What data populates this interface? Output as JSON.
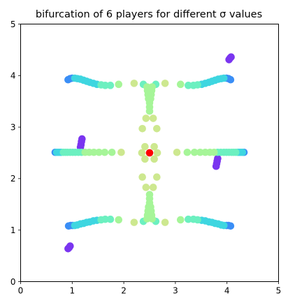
{
  "chart_data": {
    "type": "scatter",
    "title": "bifurcation of 6 players for different σ values",
    "xlabel": "",
    "ylabel": "",
    "xlim": [
      0,
      5
    ],
    "ylim": [
      0,
      5
    ],
    "xticks": [
      "0",
      "1",
      "2",
      "3",
      "4",
      "5"
    ],
    "yticks": [
      "0",
      "1",
      "2",
      "3",
      "4",
      "5"
    ],
    "grid": false,
    "legend": "none",
    "colormap": "rainbow",
    "center_color": "#ff0000",
    "palette": {
      "purple": "#7a35f0",
      "blue": "#3a8ef6",
      "cyan": "#3ed6e0",
      "teal": "#6cf0c0",
      "green": "#a6f598",
      "lime": "#cde88f"
    },
    "points": [
      {
        "x": 2.5,
        "y": 2.5,
        "c": "center"
      },
      {
        "x": 0.92,
        "y": 0.64,
        "c": "purple"
      },
      {
        "x": 0.94,
        "y": 0.66,
        "c": "purple"
      },
      {
        "x": 0.96,
        "y": 0.69,
        "c": "purple"
      },
      {
        "x": 1.16,
        "y": 2.61,
        "c": "purple"
      },
      {
        "x": 1.17,
        "y": 2.66,
        "c": "purple"
      },
      {
        "x": 1.18,
        "y": 2.72,
        "c": "purple"
      },
      {
        "x": 1.19,
        "y": 2.77,
        "c": "purple"
      },
      {
        "x": 3.79,
        "y": 2.24,
        "c": "purple"
      },
      {
        "x": 3.8,
        "y": 2.29,
        "c": "purple"
      },
      {
        "x": 3.81,
        "y": 2.34,
        "c": "purple"
      },
      {
        "x": 3.82,
        "y": 2.39,
        "c": "purple"
      },
      {
        "x": 4.04,
        "y": 4.31,
        "c": "purple"
      },
      {
        "x": 4.06,
        "y": 4.34,
        "c": "purple"
      },
      {
        "x": 4.08,
        "y": 4.36,
        "c": "purple"
      },
      {
        "x": 0.92,
        "y": 3.92,
        "c": "blue"
      },
      {
        "x": 0.96,
        "y": 3.94,
        "c": "blue"
      },
      {
        "x": 1.0,
        "y": 3.95,
        "c": "blue"
      },
      {
        "x": 0.93,
        "y": 1.08,
        "c": "blue"
      },
      {
        "x": 0.97,
        "y": 1.09,
        "c": "blue"
      },
      {
        "x": 1.01,
        "y": 1.09,
        "c": "blue"
      },
      {
        "x": 4.07,
        "y": 3.92,
        "c": "blue"
      },
      {
        "x": 4.03,
        "y": 3.94,
        "c": "blue"
      },
      {
        "x": 3.99,
        "y": 3.95,
        "c": "blue"
      },
      {
        "x": 4.07,
        "y": 1.08,
        "c": "blue"
      },
      {
        "x": 4.03,
        "y": 1.09,
        "c": "blue"
      },
      {
        "x": 3.99,
        "y": 1.09,
        "c": "blue"
      },
      {
        "x": 0.67,
        "y": 2.51,
        "c": "blue"
      },
      {
        "x": 4.33,
        "y": 2.51,
        "c": "blue"
      },
      {
        "x": 1.05,
        "y": 3.95,
        "c": "cyan"
      },
      {
        "x": 1.1,
        "y": 3.94,
        "c": "cyan"
      },
      {
        "x": 1.16,
        "y": 3.93,
        "c": "cyan"
      },
      {
        "x": 1.22,
        "y": 3.91,
        "c": "cyan"
      },
      {
        "x": 1.28,
        "y": 3.89,
        "c": "cyan"
      },
      {
        "x": 1.34,
        "y": 3.87,
        "c": "cyan"
      },
      {
        "x": 1.41,
        "y": 3.85,
        "c": "cyan"
      },
      {
        "x": 1.48,
        "y": 3.83,
        "c": "cyan"
      },
      {
        "x": 1.05,
        "y": 1.09,
        "c": "cyan"
      },
      {
        "x": 1.1,
        "y": 1.1,
        "c": "cyan"
      },
      {
        "x": 1.16,
        "y": 1.12,
        "c": "cyan"
      },
      {
        "x": 1.22,
        "y": 1.13,
        "c": "cyan"
      },
      {
        "x": 1.28,
        "y": 1.15,
        "c": "cyan"
      },
      {
        "x": 1.34,
        "y": 1.16,
        "c": "cyan"
      },
      {
        "x": 1.41,
        "y": 1.18,
        "c": "cyan"
      },
      {
        "x": 1.48,
        "y": 1.19,
        "c": "cyan"
      },
      {
        "x": 3.94,
        "y": 3.95,
        "c": "cyan"
      },
      {
        "x": 3.89,
        "y": 3.94,
        "c": "cyan"
      },
      {
        "x": 3.83,
        "y": 3.93,
        "c": "cyan"
      },
      {
        "x": 3.77,
        "y": 3.91,
        "c": "cyan"
      },
      {
        "x": 3.71,
        "y": 3.89,
        "c": "cyan"
      },
      {
        "x": 3.65,
        "y": 3.87,
        "c": "cyan"
      },
      {
        "x": 3.58,
        "y": 3.85,
        "c": "cyan"
      },
      {
        "x": 3.51,
        "y": 3.83,
        "c": "cyan"
      },
      {
        "x": 3.94,
        "y": 1.09,
        "c": "cyan"
      },
      {
        "x": 3.89,
        "y": 1.1,
        "c": "cyan"
      },
      {
        "x": 3.83,
        "y": 1.12,
        "c": "cyan"
      },
      {
        "x": 3.77,
        "y": 1.13,
        "c": "cyan"
      },
      {
        "x": 3.71,
        "y": 1.15,
        "c": "cyan"
      },
      {
        "x": 3.65,
        "y": 1.16,
        "c": "cyan"
      },
      {
        "x": 3.58,
        "y": 1.18,
        "c": "cyan"
      },
      {
        "x": 3.51,
        "y": 1.19,
        "c": "cyan"
      },
      {
        "x": 0.7,
        "y": 2.51,
        "c": "cyan"
      },
      {
        "x": 0.73,
        "y": 2.51,
        "c": "cyan"
      },
      {
        "x": 0.76,
        "y": 2.51,
        "c": "cyan"
      },
      {
        "x": 0.79,
        "y": 2.51,
        "c": "cyan"
      },
      {
        "x": 4.3,
        "y": 2.51,
        "c": "cyan"
      },
      {
        "x": 4.27,
        "y": 2.51,
        "c": "cyan"
      },
      {
        "x": 4.24,
        "y": 2.51,
        "c": "cyan"
      },
      {
        "x": 4.21,
        "y": 2.51,
        "c": "cyan"
      },
      {
        "x": 1.56,
        "y": 3.82,
        "c": "teal"
      },
      {
        "x": 1.64,
        "y": 3.81,
        "c": "teal"
      },
      {
        "x": 1.74,
        "y": 3.81,
        "c": "teal"
      },
      {
        "x": 1.56,
        "y": 1.2,
        "c": "teal"
      },
      {
        "x": 1.64,
        "y": 1.21,
        "c": "teal"
      },
      {
        "x": 1.74,
        "y": 1.21,
        "c": "teal"
      },
      {
        "x": 3.43,
        "y": 3.82,
        "c": "teal"
      },
      {
        "x": 3.35,
        "y": 3.81,
        "c": "teal"
      },
      {
        "x": 3.25,
        "y": 3.81,
        "c": "teal"
      },
      {
        "x": 3.43,
        "y": 1.2,
        "c": "teal"
      },
      {
        "x": 3.35,
        "y": 1.21,
        "c": "teal"
      },
      {
        "x": 3.25,
        "y": 1.21,
        "c": "teal"
      },
      {
        "x": 0.83,
        "y": 2.51,
        "c": "teal"
      },
      {
        "x": 0.87,
        "y": 2.51,
        "c": "teal"
      },
      {
        "x": 0.91,
        "y": 2.51,
        "c": "teal"
      },
      {
        "x": 0.96,
        "y": 2.51,
        "c": "teal"
      },
      {
        "x": 1.01,
        "y": 2.51,
        "c": "teal"
      },
      {
        "x": 1.06,
        "y": 2.51,
        "c": "teal"
      },
      {
        "x": 1.12,
        "y": 2.51,
        "c": "teal"
      },
      {
        "x": 1.18,
        "y": 2.51,
        "c": "teal"
      },
      {
        "x": 4.17,
        "y": 2.51,
        "c": "teal"
      },
      {
        "x": 4.13,
        "y": 2.51,
        "c": "teal"
      },
      {
        "x": 4.09,
        "y": 2.51,
        "c": "teal"
      },
      {
        "x": 4.04,
        "y": 2.51,
        "c": "teal"
      },
      {
        "x": 3.99,
        "y": 2.51,
        "c": "teal"
      },
      {
        "x": 3.94,
        "y": 2.51,
        "c": "teal"
      },
      {
        "x": 3.88,
        "y": 2.51,
        "c": "teal"
      },
      {
        "x": 3.82,
        "y": 2.51,
        "c": "teal"
      },
      {
        "x": 2.38,
        "y": 3.83,
        "c": "teal"
      },
      {
        "x": 2.62,
        "y": 3.83,
        "c": "teal"
      },
      {
        "x": 2.38,
        "y": 1.17,
        "c": "teal"
      },
      {
        "x": 2.62,
        "y": 1.17,
        "c": "teal"
      },
      {
        "x": 1.9,
        "y": 3.83,
        "c": "green"
      },
      {
        "x": 1.9,
        "y": 1.2,
        "c": "green"
      },
      {
        "x": 3.1,
        "y": 3.83,
        "c": "green"
      },
      {
        "x": 3.1,
        "y": 1.2,
        "c": "green"
      },
      {
        "x": 1.25,
        "y": 2.51,
        "c": "green"
      },
      {
        "x": 1.33,
        "y": 2.51,
        "c": "green"
      },
      {
        "x": 1.42,
        "y": 2.51,
        "c": "green"
      },
      {
        "x": 1.52,
        "y": 2.51,
        "c": "green"
      },
      {
        "x": 1.63,
        "y": 2.51,
        "c": "green"
      },
      {
        "x": 1.77,
        "y": 2.51,
        "c": "green"
      },
      {
        "x": 3.75,
        "y": 2.51,
        "c": "green"
      },
      {
        "x": 3.67,
        "y": 2.51,
        "c": "green"
      },
      {
        "x": 3.58,
        "y": 2.51,
        "c": "green"
      },
      {
        "x": 3.48,
        "y": 2.51,
        "c": "green"
      },
      {
        "x": 3.37,
        "y": 2.51,
        "c": "green"
      },
      {
        "x": 3.23,
        "y": 2.51,
        "c": "green"
      },
      {
        "x": 2.45,
        "y": 3.78,
        "c": "green"
      },
      {
        "x": 2.55,
        "y": 3.78,
        "c": "green"
      },
      {
        "x": 2.46,
        "y": 3.71,
        "c": "green"
      },
      {
        "x": 2.54,
        "y": 3.71,
        "c": "green"
      },
      {
        "x": 2.47,
        "y": 3.63,
        "c": "green"
      },
      {
        "x": 2.53,
        "y": 3.63,
        "c": "green"
      },
      {
        "x": 2.48,
        "y": 3.55,
        "c": "green"
      },
      {
        "x": 2.52,
        "y": 3.55,
        "c": "green"
      },
      {
        "x": 2.5,
        "y": 3.47,
        "c": "green"
      },
      {
        "x": 2.5,
        "y": 3.39,
        "c": "green"
      },
      {
        "x": 2.5,
        "y": 3.31,
        "c": "green"
      },
      {
        "x": 2.45,
        "y": 1.22,
        "c": "green"
      },
      {
        "x": 2.55,
        "y": 1.22,
        "c": "green"
      },
      {
        "x": 2.46,
        "y": 1.29,
        "c": "green"
      },
      {
        "x": 2.54,
        "y": 1.29,
        "c": "green"
      },
      {
        "x": 2.47,
        "y": 1.37,
        "c": "green"
      },
      {
        "x": 2.53,
        "y": 1.37,
        "c": "green"
      },
      {
        "x": 2.48,
        "y": 1.45,
        "c": "green"
      },
      {
        "x": 2.52,
        "y": 1.45,
        "c": "green"
      },
      {
        "x": 2.5,
        "y": 1.53,
        "c": "green"
      },
      {
        "x": 2.5,
        "y": 1.61,
        "c": "green"
      },
      {
        "x": 2.5,
        "y": 1.69,
        "c": "green"
      },
      {
        "x": 2.2,
        "y": 3.85,
        "c": "lime"
      },
      {
        "x": 2.8,
        "y": 3.85,
        "c": "lime"
      },
      {
        "x": 2.2,
        "y": 1.15,
        "c": "lime"
      },
      {
        "x": 2.8,
        "y": 1.15,
        "c": "lime"
      },
      {
        "x": 1.95,
        "y": 2.51,
        "c": "lime"
      },
      {
        "x": 3.03,
        "y": 2.51,
        "c": "lime"
      },
      {
        "x": 2.43,
        "y": 3.17,
        "c": "lime"
      },
      {
        "x": 2.57,
        "y": 3.17,
        "c": "lime"
      },
      {
        "x": 2.43,
        "y": 1.83,
        "c": "lime"
      },
      {
        "x": 2.57,
        "y": 1.83,
        "c": "lime"
      },
      {
        "x": 2.36,
        "y": 2.97,
        "c": "lime"
      },
      {
        "x": 2.64,
        "y": 2.97,
        "c": "lime"
      },
      {
        "x": 2.36,
        "y": 2.03,
        "c": "lime"
      },
      {
        "x": 2.64,
        "y": 2.03,
        "c": "lime"
      },
      {
        "x": 2.41,
        "y": 2.62,
        "c": "lime"
      },
      {
        "x": 2.59,
        "y": 2.62,
        "c": "lime"
      },
      {
        "x": 2.41,
        "y": 2.38,
        "c": "lime"
      },
      {
        "x": 2.59,
        "y": 2.38,
        "c": "lime"
      },
      {
        "x": 2.35,
        "y": 2.5,
        "c": "lime"
      },
      {
        "x": 2.65,
        "y": 2.5,
        "c": "lime"
      }
    ]
  }
}
